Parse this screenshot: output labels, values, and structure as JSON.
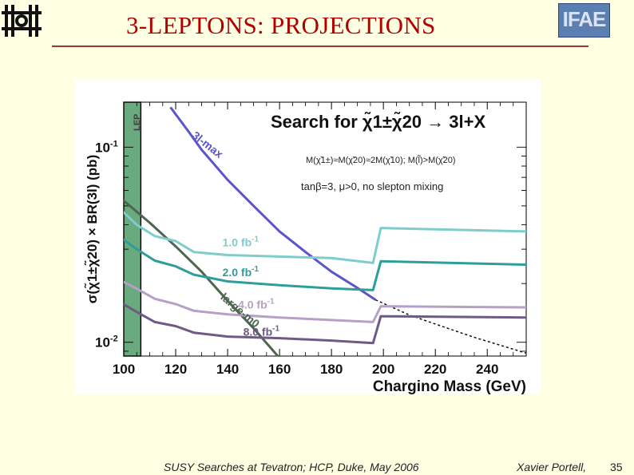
{
  "slide": {
    "title": "3-LEPTONS: PROJECTIONS",
    "footer": "SUSY Searches at Tevatron;  HCP, Duke, May 2006",
    "author": "Xavier Portell,",
    "page": "35",
    "logo_right_text": "IFAE"
  },
  "colors": {
    "background": "#ffffe3",
    "title": "#b10000",
    "lep_band": "#6aaa7f",
    "curve_3l_max": "#5a55cc",
    "curve_large_m0": "#4e6650",
    "lumi_1": "#7fcccc",
    "lumi_2": "#2e9e9a",
    "lumi_4": "#b6a0c6",
    "lumi_8": "#6e5a86"
  },
  "chart_data": {
    "type": "line",
    "title": "Search for χ̃1±χ̃20 → 3l+X",
    "title_prefix": "Search for ",
    "title_suffix": " → 3l+X",
    "subtitle_1": "M(χ̃1±)≈M(χ̃20)≈2M(χ̃10); M(l̃)>M(χ̃20)",
    "subtitle_2": "tanβ=3, μ>0, no slepton mixing",
    "xlabel": "Chargino Mass (GeV)",
    "ylabel": "σ(χ̃1±χ̃20) × BR(3l) (pb)",
    "xlim": [
      100,
      255
    ],
    "ylim_log": [
      0.0085,
      0.17
    ],
    "yscale": "log",
    "x_ticks": [
      100,
      120,
      140,
      160,
      180,
      200,
      220,
      240
    ],
    "y_tick_labels": [
      {
        "value": 0.1,
        "label": "10",
        "exp": "-1"
      },
      {
        "value": 0.01,
        "label": "10",
        "exp": "-2"
      }
    ],
    "lep_band": {
      "label": "LEP",
      "from": 100,
      "to": 103.5
    },
    "series": [
      {
        "name": "3l-max",
        "label": "3l-max",
        "color_key": "curve_3l_max",
        "points": [
          [
            118,
            0.16
          ],
          [
            125,
            0.12
          ],
          [
            130,
            0.097
          ],
          [
            140,
            0.068
          ],
          [
            150,
            0.05
          ],
          [
            160,
            0.037
          ],
          [
            170,
            0.029
          ],
          [
            180,
            0.023
          ],
          [
            190,
            0.019
          ],
          [
            197,
            0.0165
          ]
        ]
      },
      {
        "name": "3l-max extrapolation",
        "dashed": true,
        "color_key": "none",
        "points": [
          [
            197,
            0.0165
          ],
          [
            210,
            0.0138
          ],
          [
            220,
            0.0124
          ],
          [
            235,
            0.0106
          ],
          [
            255,
            0.0088
          ]
        ]
      },
      {
        "name": "large-m0",
        "label": "large-m0",
        "color_key": "curve_large_m0",
        "points": [
          [
            98,
            0.056
          ],
          [
            110,
            0.041
          ],
          [
            120,
            0.031
          ],
          [
            130,
            0.023
          ],
          [
            140,
            0.0163
          ],
          [
            150,
            0.0118
          ],
          [
            160,
            0.0083
          ]
        ]
      },
      {
        "name": "1.0 fb-1",
        "label": "1.0 fb",
        "exp": "-1",
        "color_key": "lumi_1",
        "points": [
          [
            98,
            0.049
          ],
          [
            105,
            0.04
          ],
          [
            112,
            0.035
          ],
          [
            120,
            0.033
          ],
          [
            127,
            0.029
          ],
          [
            140,
            0.028
          ],
          [
            160,
            0.0275
          ],
          [
            180,
            0.027
          ],
          [
            196,
            0.0255
          ],
          [
            199,
            0.0385
          ],
          [
            255,
            0.037
          ]
        ]
      },
      {
        "name": "2.0 fb-1",
        "label": "2.0 fb",
        "exp": "-1",
        "color_key": "lumi_2",
        "points": [
          [
            98,
            0.035
          ],
          [
            105,
            0.03
          ],
          [
            112,
            0.0262
          ],
          [
            120,
            0.0245
          ],
          [
            127,
            0.0222
          ],
          [
            140,
            0.0205
          ],
          [
            160,
            0.0196
          ],
          [
            180,
            0.0189
          ],
          [
            196,
            0.0185
          ],
          [
            199,
            0.026
          ],
          [
            255,
            0.025
          ]
        ]
      },
      {
        "name": "4.0 fb-1",
        "label": "4.0 fb",
        "exp": "-1",
        "color_key": "lumi_4",
        "points": [
          [
            98,
            0.021
          ],
          [
            105,
            0.0188
          ],
          [
            112,
            0.0167
          ],
          [
            120,
            0.0157
          ],
          [
            127,
            0.0145
          ],
          [
            140,
            0.0139
          ],
          [
            160,
            0.0134
          ],
          [
            180,
            0.013
          ],
          [
            196,
            0.0127
          ],
          [
            199,
            0.0153
          ],
          [
            255,
            0.0151
          ]
        ]
      },
      {
        "name": "8.0 fb-1",
        "label": "8.0 fb",
        "exp": "-1",
        "color_key": "lumi_8",
        "points": [
          [
            98,
            0.0162
          ],
          [
            105,
            0.0143
          ],
          [
            112,
            0.0127
          ],
          [
            120,
            0.0121
          ],
          [
            127,
            0.0112
          ],
          [
            140,
            0.0107
          ],
          [
            160,
            0.0105
          ],
          [
            180,
            0.0102
          ],
          [
            196,
            0.0099
          ],
          [
            199,
            0.0136
          ],
          [
            255,
            0.0134
          ]
        ]
      }
    ],
    "curve_labels": [
      {
        "series": "3l-max",
        "x": 126,
        "y": 0.113,
        "rotate": 38,
        "color_key": "curve_3l_max"
      },
      {
        "series": "large-m0",
        "x": 137,
        "y": 0.0168,
        "rotate": 40,
        "color_key": "curve_large_m0"
      },
      {
        "series": "1.0 fb-1",
        "x": 138,
        "y": 0.031,
        "rotate": 0,
        "color_key": "lumi_1"
      },
      {
        "series": "2.0 fb-1",
        "x": 138,
        "y": 0.0218,
        "rotate": 0,
        "color_key": "lumi_2"
      },
      {
        "series": "4.0 fb-1",
        "x": 144,
        "y": 0.0149,
        "rotate": 0,
        "color_key": "lumi_4"
      },
      {
        "series": "8.0 fb-1",
        "x": 146,
        "y": 0.0108,
        "rotate": 0,
        "color_key": "lumi_8"
      }
    ]
  }
}
